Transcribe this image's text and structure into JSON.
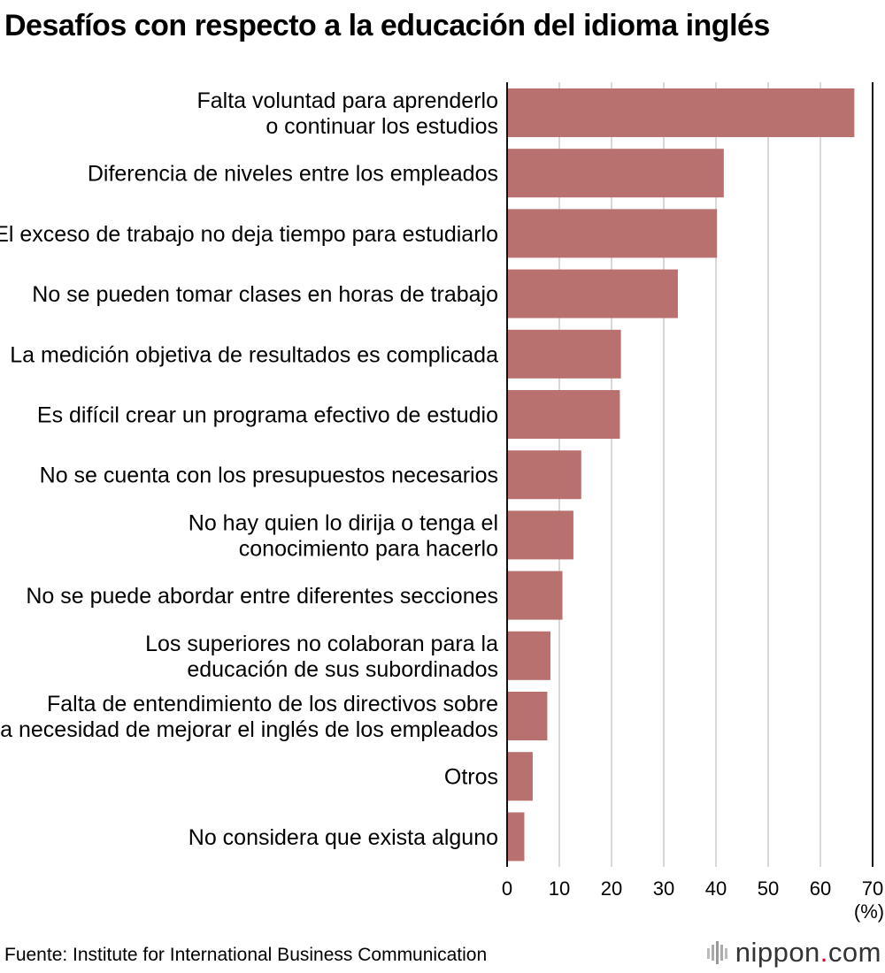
{
  "chart_data": {
    "type": "bar",
    "orientation": "horizontal",
    "title": "Desafíos con respecto a la educación del idioma inglés",
    "categories": [
      [
        "Falta voluntad para aprenderlo",
        "o continuar los estudios"
      ],
      [
        "Diferencia de niveles entre los empleados"
      ],
      [
        "El exceso de trabajo no deja tiempo para estudiarlo"
      ],
      [
        "No se pueden tomar clases en horas de trabajo"
      ],
      [
        "La medición objetiva de resultados es complicada"
      ],
      [
        "Es difícil crear un programa efectivo de estudio"
      ],
      [
        "No se cuenta con los presupuestos necesarios"
      ],
      [
        "No hay quien lo dirija o tenga el",
        "conocimiento para hacerlo"
      ],
      [
        "No se puede abordar entre diferentes secciones"
      ],
      [
        "Los superiores no colaboran para la",
        "educación de sus subordinados"
      ],
      [
        "Falta de entendimiento de los directivos sobre",
        "la necesidad de mejorar el inglés de los empleados"
      ],
      [
        "Otros"
      ],
      [
        "No considera que exista alguno"
      ]
    ],
    "values": [
      66.5,
      41.5,
      40.2,
      32.7,
      21.8,
      21.6,
      14.2,
      12.7,
      10.6,
      8.3,
      7.7,
      4.9,
      3.3
    ],
    "xlim": [
      0,
      70
    ],
    "xticks": [
      0,
      10,
      20,
      30,
      40,
      50,
      60,
      70
    ],
    "xunit": "(%)",
    "grid": true,
    "bar_color": "#b97170"
  },
  "source": "Fuente: Institute for International Business Communication",
  "logo": {
    "name": "nippon",
    "dot": ".",
    "tld": "com"
  }
}
